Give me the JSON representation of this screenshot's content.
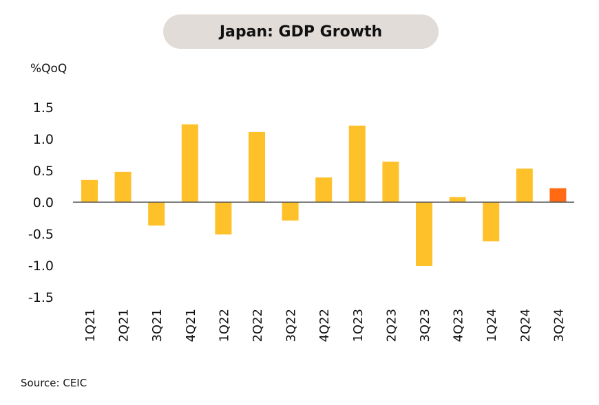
{
  "title": "Japan: GDP Growth",
  "unit_label": "%QoQ",
  "source": "Source: CEIC",
  "colors": {
    "bar": "#FFC12A",
    "highlight": "#FF6A13",
    "axis": "#555555",
    "title_bg": "#e2dcd8"
  },
  "chart_data": {
    "type": "bar",
    "title": "Japan: GDP Growth",
    "ylabel": "%QoQ",
    "xlabel": "",
    "categories": [
      "1Q21",
      "2Q21",
      "3Q21",
      "4Q21",
      "1Q22",
      "2Q22",
      "3Q22",
      "4Q22",
      "1Q23",
      "2Q23",
      "3Q23",
      "4Q23",
      "1Q24",
      "2Q24",
      "3Q24"
    ],
    "values": [
      0.35,
      0.48,
      -0.37,
      1.23,
      -0.51,
      1.11,
      -0.29,
      0.39,
      1.21,
      0.64,
      -1.01,
      0.08,
      -0.62,
      0.53,
      0.22
    ],
    "highlight_index": 14,
    "ylim": [
      -1.5,
      1.5
    ],
    "yticks": [
      "1.5",
      "1.0",
      "0.5",
      "0.0",
      "-0.5",
      "-1.0",
      "-1.5"
    ],
    "grid": false,
    "legend": "none"
  }
}
